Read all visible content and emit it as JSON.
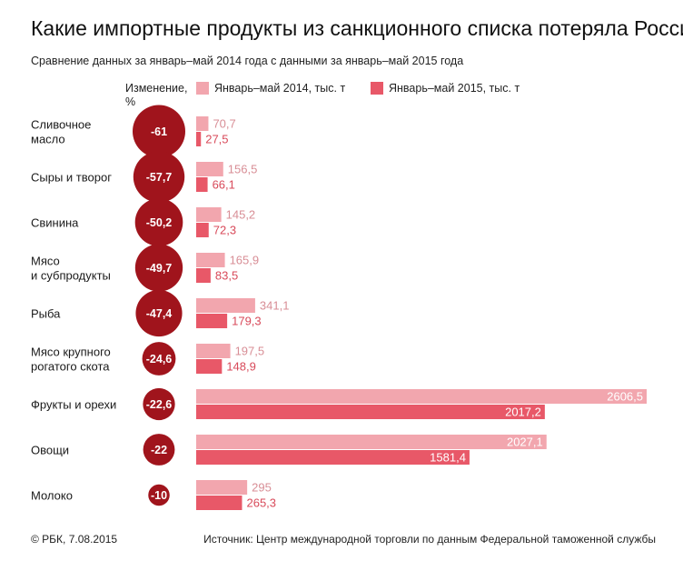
{
  "header": {
    "title": "Какие импортные продукты из санкционного списка потеряла Россия",
    "subtitle": "Сравнение данных за январь–май 2014 года с данными за январь–май 2015 года"
  },
  "change_header": "Изменение,\n%",
  "legend": {
    "y2014": "Январь–май 2014, тыс. т",
    "y2015": "Январь–май 2015, тыс. т"
  },
  "colors": {
    "y2014": "#f2a6ae",
    "y2015": "#e85868",
    "circle": "#a0141c",
    "label_2014_text": "#d88e96",
    "label_2015_text": "#d84a5a"
  },
  "footer": {
    "source_left": "© РБК, 7.08.2015",
    "source_right": "Источник: Центр международной торговли по данным Федеральной таможенной службы"
  },
  "chart_data": {
    "type": "bar",
    "orientation": "horizontal",
    "categories": [
      "Сливочное\nмасло",
      "Сыры и творог",
      "Свинина",
      "Мясо\nи субпродукты",
      "Рыба",
      "Мясо крупного\nрогатого скота",
      "Фрукты и орехи",
      "Овощи",
      "Молоко"
    ],
    "series": [
      {
        "name": "Январь–май 2014, тыс. т",
        "values": [
          70.7,
          156.5,
          145.2,
          165.9,
          341.1,
          197.5,
          2606.5,
          2027.1,
          295
        ]
      },
      {
        "name": "Январь–май 2015, тыс. т",
        "values": [
          27.5,
          66.1,
          72.3,
          83.5,
          179.3,
          148.9,
          2017.2,
          1581.4,
          265.3
        ]
      }
    ],
    "value_labels_2014": [
      "70,7",
      "156,5",
      "145,2",
      "165,9",
      "341,1",
      "197,5",
      "2606,5",
      "2027,1",
      "295"
    ],
    "value_labels_2015": [
      "27,5",
      "66,1",
      "72,3",
      "83,5",
      "179,3",
      "148,9",
      "2017,2",
      "1581,4",
      "265,3"
    ],
    "change_percent": [
      -61,
      -57.7,
      -50.2,
      -49.7,
      -47.4,
      -24.6,
      -22.6,
      -22,
      -10
    ],
    "change_labels": [
      "-61",
      "-57,7",
      "-50,2",
      "-49,7",
      "-47,4",
      "-24,6",
      "-22,6",
      "-22",
      "-10"
    ],
    "xlim": [
      0,
      2606.5
    ],
    "grid": false
  }
}
